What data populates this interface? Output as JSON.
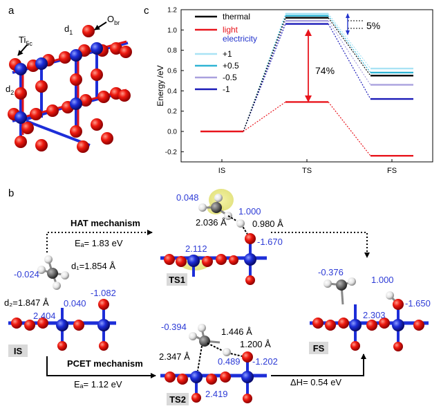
{
  "panels": {
    "a": "a",
    "b": "b",
    "c": "c"
  },
  "panel_a": {
    "label_ti": "Ti",
    "label_ti_sub": "5c",
    "label_o": "O",
    "label_o_sub": "br",
    "label_d1": "d",
    "label_d1_sub": "1",
    "label_d2": "d",
    "label_d2_sub": "2"
  },
  "chart_data": {
    "type": "line",
    "title": "",
    "xlabel": "",
    "ylabel": "Energy /eV",
    "categories": [
      "IS",
      "TS",
      "FS"
    ],
    "ylim": [
      -0.3,
      1.2
    ],
    "yticks": [
      "-0.2",
      "0.0",
      "0.2",
      "0.4",
      "0.6",
      "0.8",
      "1.0",
      "1.2"
    ],
    "ytick_values": [
      -0.2,
      0.0,
      0.2,
      0.4,
      0.6,
      0.8,
      1.0,
      1.2
    ],
    "series": [
      {
        "name": "thermal",
        "color": "#000000",
        "values": [
          0.0,
          1.12,
          0.55
        ]
      },
      {
        "name": "light",
        "color": "#e8141c",
        "values": [
          0.0,
          0.29,
          -0.24
        ]
      },
      {
        "name": "+1",
        "color": "#a9e3f5",
        "values": [
          0.0,
          1.16,
          0.62
        ]
      },
      {
        "name": "+0.5",
        "color": "#2fb4d4",
        "values": [
          0.0,
          1.14,
          0.58
        ]
      },
      {
        "name": "-0.5",
        "color": "#a9a0de",
        "values": [
          0.0,
          1.09,
          0.46
        ]
      },
      {
        "name": "-1",
        "color": "#1a1ab8",
        "values": [
          0.0,
          1.06,
          0.32
        ]
      }
    ],
    "legend_group_label": "electricity",
    "annotations": {
      "pct_light": "74%",
      "pct_electricity": "5%"
    }
  },
  "panel_b": {
    "hat_title": "HAT mechanism",
    "hat_ea": "Eₐ= 1.83 eV",
    "pcet_title": "PCET mechanism",
    "pcet_ea": "Eₐ= 1.12 eV",
    "delta_h": "ΔH= 0.54 eV",
    "box_is": "IS",
    "box_ts1": "TS1",
    "box_ts2": "TS2",
    "box_fs": "FS",
    "is": {
      "c": "-0.024",
      "o": "-1.082",
      "h": "0.040",
      "ti": "2.404",
      "d1": "d₁=1.854 Å",
      "d2": "d₂=1.847 Å"
    },
    "ts1": {
      "h1": "0.048",
      "h2": "1.000",
      "dist1": "2.036 Å",
      "dist2": "0.980 Å",
      "ti": "2.112",
      "o": "-1.670"
    },
    "ts2": {
      "c": "-0.394",
      "d_hc": "1.446 Å",
      "d_ho": "1.200 Å",
      "d_cti": "2.347 Å",
      "h": "0.489",
      "o": "-1.202",
      "ti": "2.419"
    },
    "fs": {
      "c": "-0.376",
      "h": "1.000",
      "ti": "2.303",
      "o": "-1.650"
    }
  }
}
